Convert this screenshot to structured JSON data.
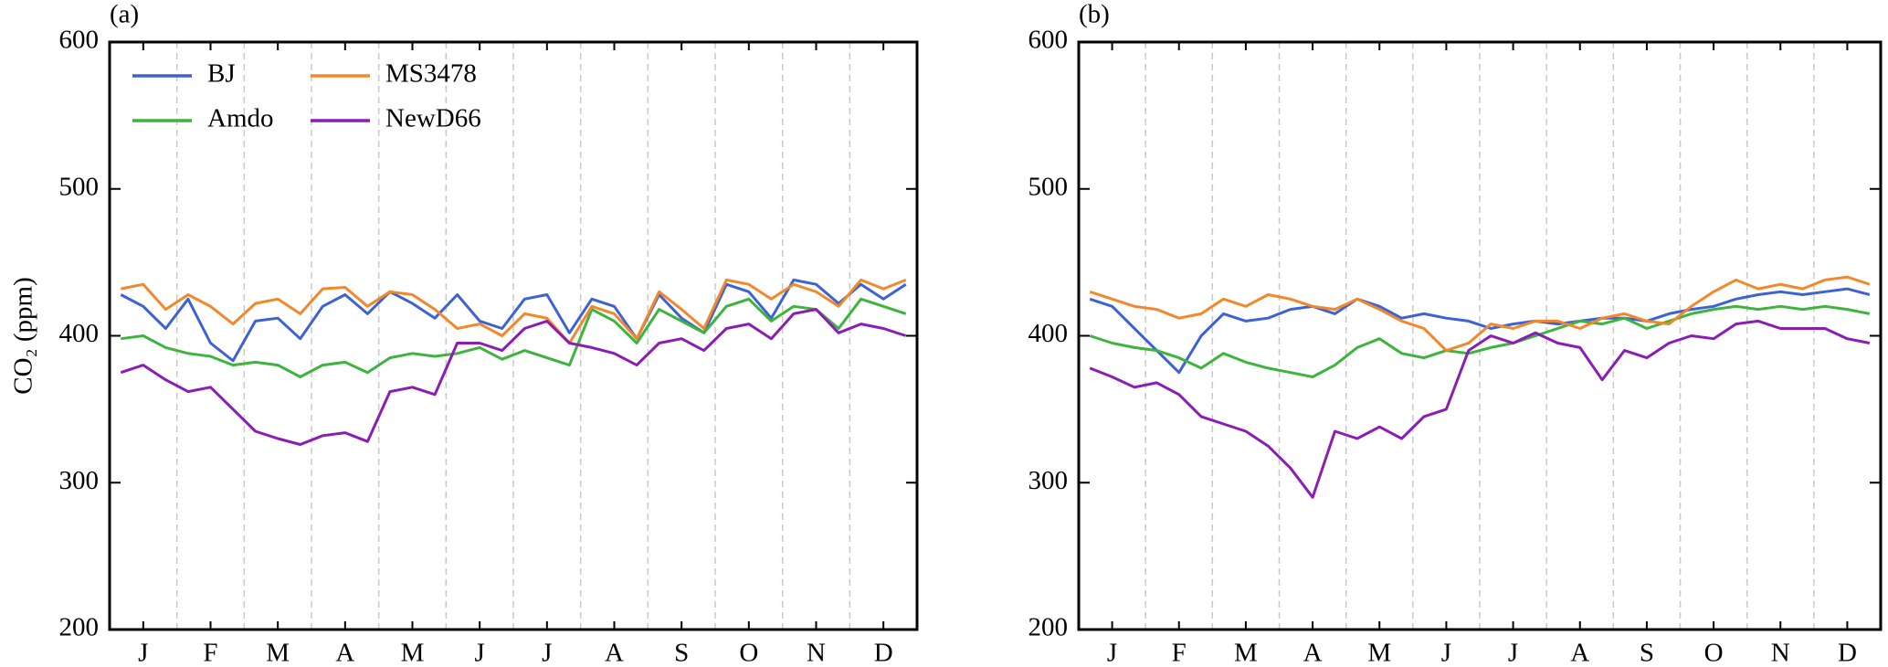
{
  "chart_data": [
    {
      "type": "line",
      "title": "(a)",
      "ylabel": "CO₂ (ppm)",
      "legend": "upper left",
      "categories": [
        null,
        "J",
        null,
        null,
        "F",
        null,
        null,
        "M",
        null,
        null,
        "A",
        null,
        null,
        "M",
        null,
        null,
        "J",
        null,
        null,
        "J",
        null,
        null,
        "A",
        null,
        null,
        "S",
        null,
        null,
        "O",
        null,
        null,
        "N",
        null,
        null,
        "D",
        null
      ],
      "ylim": [
        200,
        600
      ],
      "yticks": [
        200,
        300,
        400,
        500,
        600
      ],
      "series": [
        {
          "name": "BJ",
          "color": "#3c62d4",
          "values": [
            428,
            420,
            405,
            425,
            395,
            383,
            410,
            412,
            398,
            420,
            428,
            415,
            430,
            422,
            412,
            428,
            410,
            405,
            425,
            428,
            402,
            425,
            420,
            398,
            428,
            412,
            402,
            435,
            430,
            412,
            438,
            435,
            422,
            435,
            425,
            435
          ]
        },
        {
          "name": "Amdo",
          "color": "#3db43d",
          "values": [
            398,
            400,
            392,
            388,
            386,
            380,
            382,
            380,
            372,
            380,
            382,
            375,
            385,
            388,
            386,
            388,
            392,
            384,
            390,
            385,
            380,
            418,
            410,
            395,
            418,
            410,
            402,
            420,
            425,
            410,
            420,
            418,
            405,
            425,
            420,
            415
          ]
        },
        {
          "name": "MS3478",
          "color": "#f2872c",
          "values": [
            432,
            435,
            418,
            428,
            420,
            408,
            422,
            425,
            415,
            432,
            433,
            420,
            430,
            428,
            418,
            405,
            408,
            400,
            415,
            412,
            395,
            420,
            415,
            398,
            430,
            418,
            405,
            438,
            435,
            425,
            435,
            430,
            420,
            438,
            432,
            438
          ]
        },
        {
          "name": "NewD66",
          "color": "#8a1db3",
          "values": [
            375,
            380,
            370,
            362,
            365,
            350,
            335,
            330,
            326,
            332,
            334,
            328,
            362,
            365,
            360,
            395,
            395,
            390,
            405,
            410,
            395,
            392,
            388,
            380,
            395,
            398,
            390,
            405,
            408,
            398,
            415,
            418,
            402,
            408,
            405,
            400
          ]
        }
      ]
    },
    {
      "type": "line",
      "title": "(b)",
      "categories": [
        null,
        "J",
        null,
        null,
        "F",
        null,
        null,
        "M",
        null,
        null,
        "A",
        null,
        null,
        "M",
        null,
        null,
        "J",
        null,
        null,
        "J",
        null,
        null,
        "A",
        null,
        null,
        "S",
        null,
        null,
        "O",
        null,
        null,
        "N",
        null,
        null,
        "D",
        null
      ],
      "ylim": [
        200,
        600
      ],
      "yticks": [
        200,
        300,
        400,
        500,
        600
      ],
      "series": [
        {
          "name": "BJ",
          "color": "#3c62d4",
          "values": [
            425,
            420,
            405,
            390,
            375,
            400,
            415,
            410,
            412,
            418,
            420,
            415,
            425,
            420,
            412,
            415,
            412,
            410,
            405,
            408,
            410,
            408,
            410,
            412,
            412,
            410,
            415,
            418,
            420,
            425,
            428,
            430,
            428,
            430,
            432,
            428
          ]
        },
        {
          "name": "Amdo",
          "color": "#3db43d",
          "values": [
            400,
            395,
            392,
            390,
            385,
            378,
            388,
            382,
            378,
            375,
            372,
            380,
            392,
            398,
            388,
            385,
            390,
            388,
            392,
            395,
            400,
            405,
            410,
            408,
            412,
            405,
            410,
            415,
            418,
            420,
            418,
            420,
            418,
            420,
            418,
            415
          ]
        },
        {
          "name": "MS3478",
          "color": "#f2872c",
          "values": [
            430,
            425,
            420,
            418,
            412,
            415,
            425,
            420,
            428,
            425,
            420,
            418,
            425,
            418,
            410,
            405,
            390,
            395,
            408,
            405,
            410,
            410,
            405,
            412,
            415,
            410,
            408,
            420,
            430,
            438,
            432,
            435,
            432,
            438,
            440,
            435
          ]
        },
        {
          "name": "NewD66",
          "color": "#8a1db3",
          "values": [
            378,
            372,
            365,
            368,
            360,
            345,
            340,
            335,
            325,
            310,
            290,
            335,
            330,
            338,
            330,
            345,
            350,
            390,
            400,
            395,
            402,
            395,
            392,
            370,
            390,
            385,
            395,
            400,
            398,
            408,
            410,
            405,
            405,
            405,
            398,
            395
          ]
        }
      ]
    }
  ]
}
